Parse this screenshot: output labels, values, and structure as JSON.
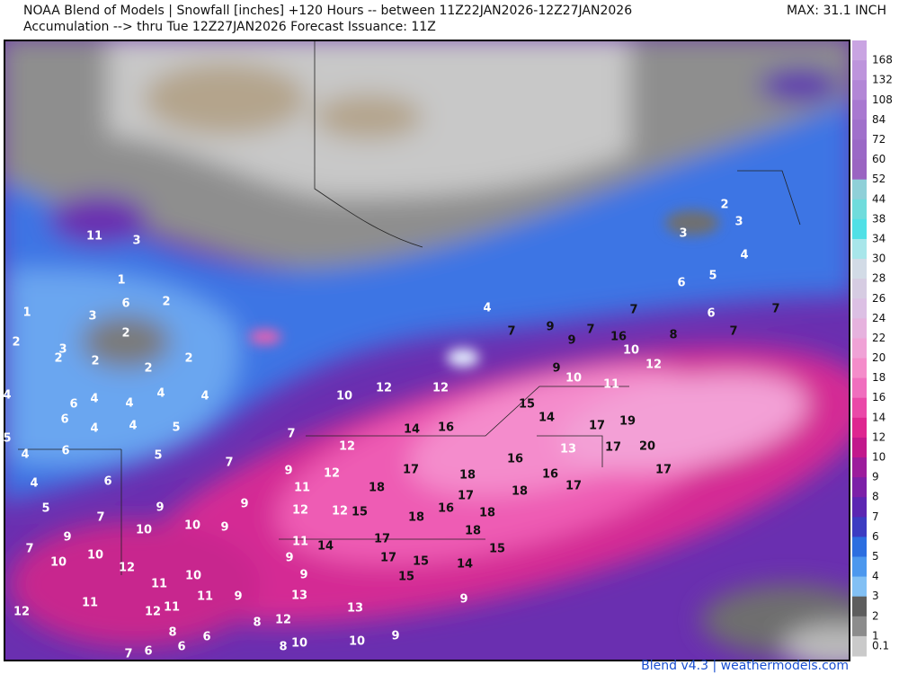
{
  "header": {
    "line1": "NOAA Blend of Models | Snowfall [inches] +120 Hours -- between 11Z22JAN2026-12Z27JAN2026",
    "line2": "Accumulation --> thru Tue 12Z27JAN2026  Forecast Issuance: 11Z",
    "max": "MAX: 31.1 INCH"
  },
  "legend": {
    "items": [
      {
        "label": 168,
        "color": "#c9a4e2"
      },
      {
        "label": 132,
        "color": "#bd94dc"
      },
      {
        "label": 108,
        "color": "#b286d6"
      },
      {
        "label": 84,
        "color": "#a878d0"
      },
      {
        "label": 72,
        "color": "#a070cb"
      },
      {
        "label": 60,
        "color": "#9a68c6"
      },
      {
        "label": 52,
        "color": "#9a64c2"
      },
      {
        "label": 44,
        "color": "#8fd0d8"
      },
      {
        "label": 38,
        "color": "#6fdcdc"
      },
      {
        "label": 34,
        "color": "#50e0e6"
      },
      {
        "label": 30,
        "color": "#a8e6ea"
      },
      {
        "label": 28,
        "color": "#d2dbe6"
      },
      {
        "label": 26,
        "color": "#d6cce2"
      },
      {
        "label": 24,
        "color": "#dcc0e4"
      },
      {
        "label": 22,
        "color": "#e6b2de"
      },
      {
        "label": 20,
        "color": "#f0a2d6"
      },
      {
        "label": 18,
        "color": "#f48cca"
      },
      {
        "label": 16,
        "color": "#f06ebe"
      },
      {
        "label": 14,
        "color": "#ea48a8"
      },
      {
        "label": 12,
        "color": "#de2690"
      },
      {
        "label": 10,
        "color": "#c2188c"
      },
      {
        "label": 9,
        "color": "#9c1c9c"
      },
      {
        "label": 8,
        "color": "#7c20a8"
      },
      {
        "label": 7,
        "color": "#5c26b2"
      },
      {
        "label": 6,
        "color": "#3c3cc2"
      },
      {
        "label": 5,
        "color": "#2c6ee0"
      },
      {
        "label": 4,
        "color": "#4c98ee"
      },
      {
        "label": 3,
        "color": "#82c0f4"
      },
      {
        "label": 2,
        "color": "#5e5e5e"
      },
      {
        "label": 1,
        "color": "#8c8c8c"
      },
      {
        "label": 0.1,
        "color": "#cacaca"
      }
    ]
  },
  "map": {
    "labels": [
      11,
      3,
      1,
      6,
      2,
      1,
      3,
      2,
      2,
      3,
      2,
      2,
      2,
      2,
      4,
      6,
      4,
      4,
      4,
      4,
      6,
      4,
      4,
      5,
      5,
      4,
      6,
      5,
      7,
      4,
      6,
      5,
      7,
      9,
      10,
      9,
      9,
      7,
      9,
      10,
      10,
      10,
      12,
      11,
      10,
      12,
      11,
      12,
      11,
      11,
      9,
      8,
      12,
      8,
      6,
      6,
      7,
      6,
      8,
      10,
      10,
      9,
      7,
      9,
      11,
      12,
      12,
      10,
      12,
      12,
      14,
      16,
      17,
      18,
      12,
      12,
      15,
      18,
      16,
      18,
      17,
      18,
      18,
      11,
      14,
      17,
      17,
      9,
      9,
      15,
      15,
      14,
      15,
      13,
      13,
      9,
      4,
      7,
      9,
      9,
      7,
      16,
      7,
      10,
      8,
      12,
      9,
      10,
      11,
      15,
      14,
      17,
      19,
      13,
      17,
      20,
      16,
      16,
      17,
      18,
      17,
      2,
      3,
      3,
      4,
      5,
      6,
      6,
      7,
      7
    ]
  },
  "footer": "Blend v4.3 | weathermodels.com"
}
